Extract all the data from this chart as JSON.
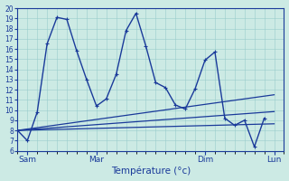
{
  "xlabel": "Température (°c)",
  "bg_color": "#cceae4",
  "line_color": "#1a3a9a",
  "grid_color": "#99cccc",
  "x_ticks": [
    1,
    8,
    19,
    26
  ],
  "x_tick_labels": [
    "Sam",
    "Mar",
    "Dim",
    "Lun"
  ],
  "ylim": [
    6,
    20
  ],
  "xlim": [
    0,
    27
  ],
  "y_ticks": [
    6,
    7,
    8,
    9,
    10,
    11,
    12,
    13,
    14,
    15,
    16,
    17,
    18,
    19,
    20
  ],
  "series_main": [
    8.0,
    7.0,
    9.8,
    16.5,
    19.1,
    18.9,
    15.8,
    13.0,
    10.4,
    11.1,
    13.5,
    17.8,
    19.5,
    16.3,
    12.7,
    12.2,
    10.5,
    10.1,
    12.1,
    14.9,
    15.7,
    9.2,
    8.5,
    9.0,
    6.4,
    9.2
  ],
  "series_trend1": [
    [
      0,
      8.0
    ],
    [
      26,
      11.5
    ]
  ],
  "series_trend2": [
    [
      0,
      8.0
    ],
    [
      26,
      9.85
    ]
  ],
  "series_trend3": [
    [
      0,
      8.0
    ],
    [
      26,
      8.65
    ]
  ]
}
